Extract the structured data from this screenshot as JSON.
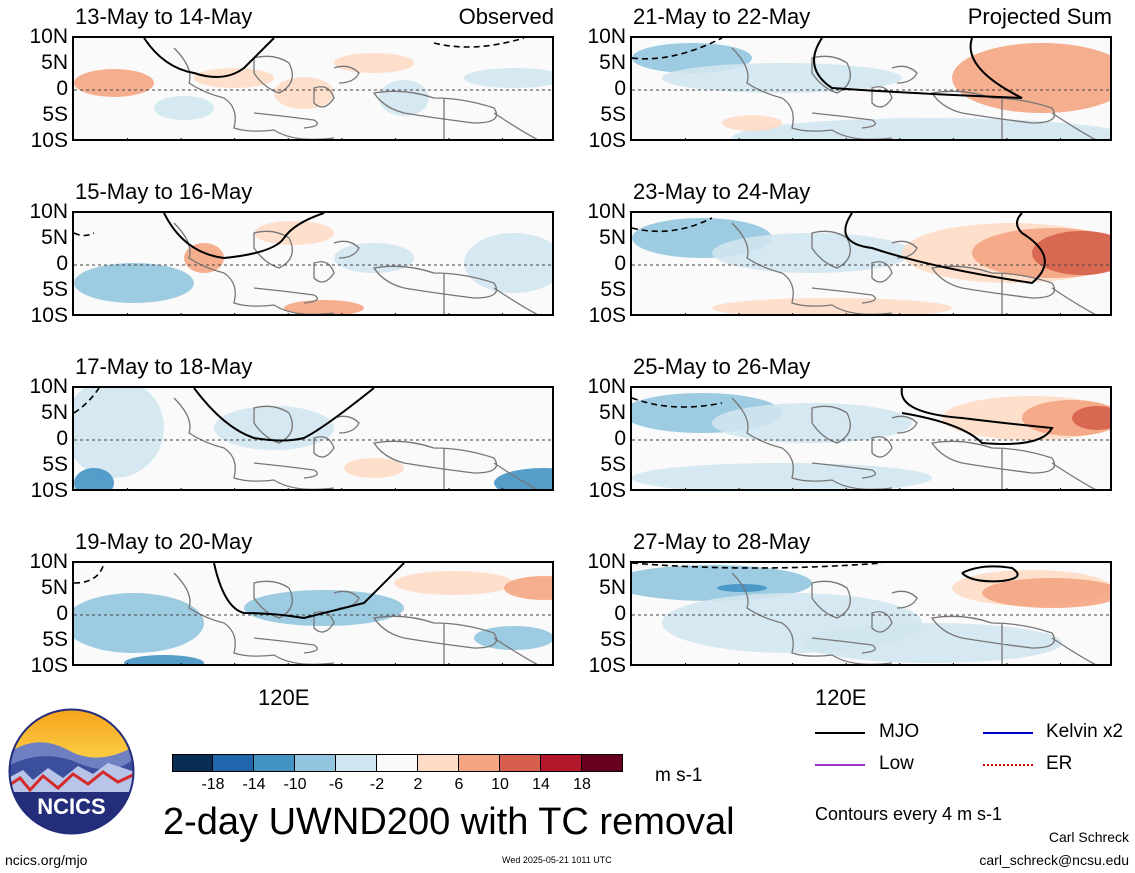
{
  "panels": [
    {
      "title": "13-May to 14-May",
      "tag": "Observed",
      "col": 0,
      "row": 0
    },
    {
      "title": "15-May to 16-May",
      "tag": "",
      "col": 0,
      "row": 1
    },
    {
      "title": "17-May to 18-May",
      "tag": "",
      "col": 0,
      "row": 2
    },
    {
      "title": "19-May to 20-May",
      "tag": "",
      "col": 0,
      "row": 3
    },
    {
      "title": "21-May to 22-May",
      "tag": "Projected Sum",
      "col": 1,
      "row": 0
    },
    {
      "title": "23-May to 24-May",
      "tag": "",
      "col": 1,
      "row": 1
    },
    {
      "title": "25-May to 26-May",
      "tag": "",
      "col": 1,
      "row": 2
    },
    {
      "title": "27-May to 28-May",
      "tag": "",
      "col": 1,
      "row": 3
    }
  ],
  "lat_labels": [
    "10N",
    "5N",
    "0",
    "5S",
    "10S"
  ],
  "lon_label": "120E",
  "colorbar": {
    "labels": [
      "-18",
      "-14",
      "-10",
      "-6",
      "-2",
      "2",
      "6",
      "10",
      "14",
      "18"
    ],
    "colors": [
      "#0a2d54",
      "#2166ac",
      "#4393c3",
      "#92c5de",
      "#d1e5f0",
      "#fafafa",
      "#fddbc7",
      "#f4a582",
      "#d6604d",
      "#b2182b",
      "#67001f"
    ],
    "units": "m s-1"
  },
  "main_title": "2-day UWND200 with TC removal",
  "legend": {
    "mjo": {
      "label": "MJO",
      "color": "#000000"
    },
    "kelvin": {
      "label": "Kelvin x2",
      "color": "#0000cc"
    },
    "low": {
      "label": "Low",
      "color": "#9933cc"
    },
    "er": {
      "label": "ER",
      "color": "#cc0000"
    },
    "contours_note": "Contours every 4 m s-1"
  },
  "logo_text": "NCICS",
  "footer": {
    "website": "ncics.org/mjo",
    "timestamp": "Wed 2025-05-21 1011 UTC",
    "author": "Carl Schreck",
    "email": "carl_schreck@ncsu.edu"
  }
}
